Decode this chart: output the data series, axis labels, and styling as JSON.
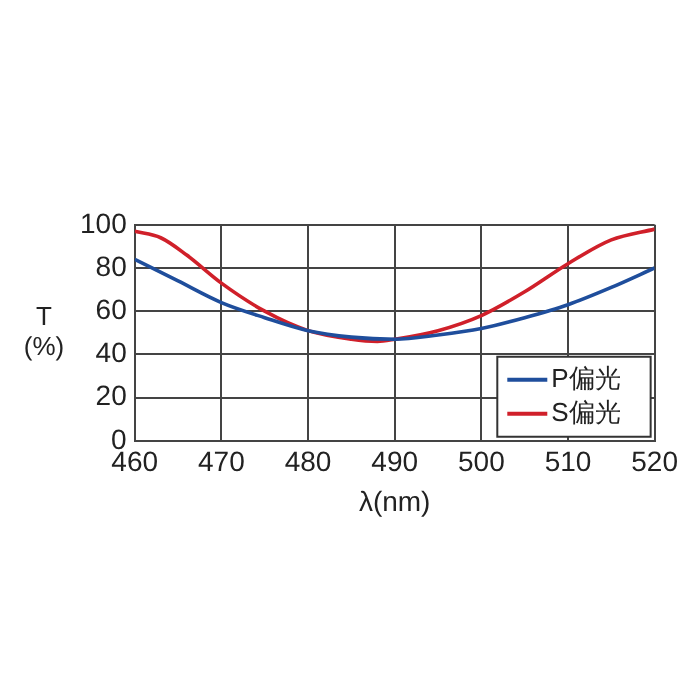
{
  "chart_data": {
    "type": "line",
    "xlabel": "λ(nm)",
    "ylabel": "T\n(%)",
    "xlim": [
      460,
      520
    ],
    "xticks": [
      460,
      470,
      480,
      490,
      500,
      510,
      520
    ],
    "ylim": [
      0,
      100
    ],
    "yticks": [
      0,
      20,
      40,
      60,
      80,
      100
    ],
    "grid": true,
    "legend": "bottom right",
    "marker": "none",
    "line_style": "solid",
    "series": [
      {
        "name": "P偏光",
        "color": "#1f4e9c",
        "x": [
          460,
          465,
          470,
          475,
          480,
          485,
          490,
          495,
          500,
          505,
          510,
          515,
          520
        ],
        "values": [
          84,
          74,
          64,
          57,
          51,
          48,
          47,
          49,
          52,
          57,
          63,
          71,
          80
        ]
      },
      {
        "name": "S偏光",
        "color": "#d0202a",
        "x": [
          460,
          463,
          466,
          470,
          475,
          480,
          485,
          488,
          490,
          495,
          500,
          505,
          510,
          515,
          520
        ],
        "values": [
          97,
          94,
          86,
          73,
          60,
          51,
          47,
          46,
          47,
          51,
          58,
          69,
          82,
          93,
          98
        ]
      }
    ]
  }
}
